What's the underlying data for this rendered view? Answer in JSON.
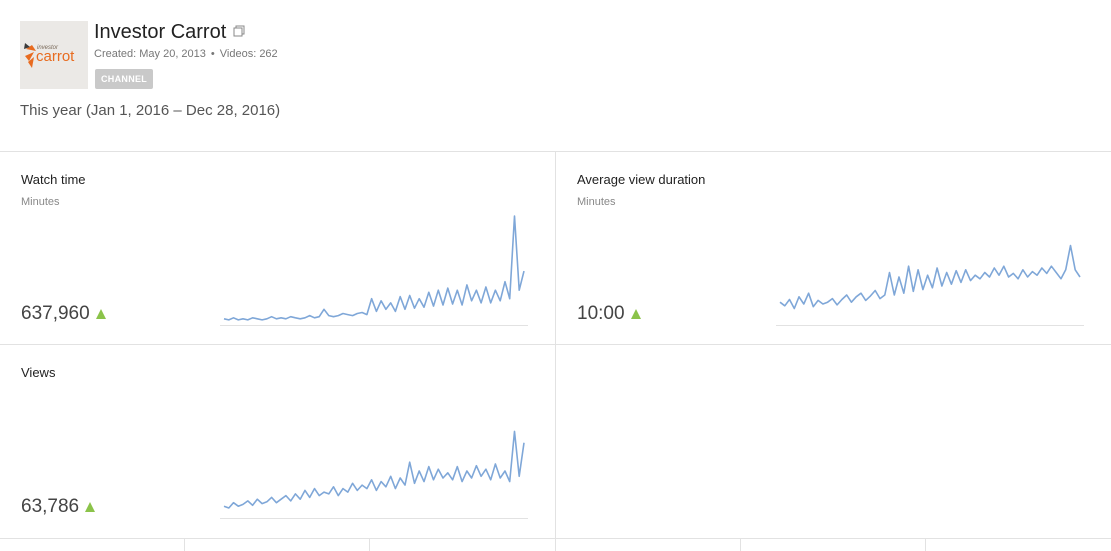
{
  "channel": {
    "title": "Investor Carrot",
    "logo_text_small": "investor",
    "logo_text_big": "carrot",
    "created": "Created: May 20, 2013",
    "videos": "Videos: 262",
    "badge": "CHANNEL"
  },
  "date_range": "This year (Jan 1, 2016 – Dec 28, 2016)",
  "colors": {
    "spark": "#7fa7d8",
    "up": "#8bc34a",
    "accent": "#e86b1f"
  },
  "cards": {
    "watch_time": {
      "label": "Watch time",
      "unit": "Minutes",
      "value": "637,960"
    },
    "avg_view_duration": {
      "label": "Average view duration",
      "unit": "Minutes",
      "value": "10:00"
    },
    "views": {
      "label": "Views",
      "unit": "",
      "value": "63,786"
    }
  },
  "chart_data": [
    {
      "type": "line",
      "title": "Watch time",
      "ylabel": "Minutes",
      "trend_shape": [
        0.03,
        0.02,
        0.04,
        0.02,
        0.03,
        0.02,
        0.04,
        0.03,
        0.02,
        0.03,
        0.05,
        0.03,
        0.04,
        0.03,
        0.05,
        0.04,
        0.03,
        0.04,
        0.06,
        0.04,
        0.05,
        0.12,
        0.06,
        0.05,
        0.06,
        0.08,
        0.07,
        0.06,
        0.08,
        0.09,
        0.07,
        0.22,
        0.1,
        0.2,
        0.12,
        0.18,
        0.1,
        0.24,
        0.12,
        0.25,
        0.13,
        0.22,
        0.14,
        0.28,
        0.15,
        0.3,
        0.16,
        0.32,
        0.17,
        0.3,
        0.16,
        0.35,
        0.2,
        0.3,
        0.18,
        0.33,
        0.18,
        0.3,
        0.2,
        0.38,
        0.22,
        1.0,
        0.3,
        0.48
      ],
      "peak_label": "",
      "y_total": 637960
    },
    {
      "type": "line",
      "title": "Average view duration",
      "ylabel": "Minutes",
      "trend_shape": [
        0.22,
        0.18,
        0.25,
        0.15,
        0.28,
        0.2,
        0.32,
        0.17,
        0.24,
        0.2,
        0.22,
        0.26,
        0.19,
        0.25,
        0.3,
        0.22,
        0.28,
        0.32,
        0.24,
        0.29,
        0.35,
        0.26,
        0.3,
        0.55,
        0.3,
        0.5,
        0.32,
        0.62,
        0.34,
        0.58,
        0.36,
        0.52,
        0.38,
        0.6,
        0.4,
        0.55,
        0.42,
        0.57,
        0.44,
        0.58,
        0.46,
        0.52,
        0.48,
        0.55,
        0.5,
        0.6,
        0.52,
        0.62,
        0.5,
        0.54,
        0.48,
        0.58,
        0.5,
        0.56,
        0.52,
        0.6,
        0.54,
        0.62,
        0.55,
        0.48,
        0.58,
        0.85,
        0.58,
        0.5
      ],
      "value_label": "10:00"
    },
    {
      "type": "line",
      "title": "Views",
      "ylabel": "",
      "trend_shape": [
        0.1,
        0.08,
        0.14,
        0.1,
        0.12,
        0.16,
        0.11,
        0.18,
        0.13,
        0.15,
        0.2,
        0.14,
        0.18,
        0.22,
        0.16,
        0.24,
        0.18,
        0.28,
        0.2,
        0.3,
        0.22,
        0.26,
        0.24,
        0.32,
        0.22,
        0.3,
        0.26,
        0.36,
        0.28,
        0.34,
        0.3,
        0.4,
        0.28,
        0.38,
        0.32,
        0.44,
        0.3,
        0.42,
        0.34,
        0.6,
        0.36,
        0.5,
        0.38,
        0.55,
        0.4,
        0.52,
        0.42,
        0.48,
        0.4,
        0.55,
        0.38,
        0.5,
        0.42,
        0.56,
        0.44,
        0.52,
        0.4,
        0.58,
        0.42,
        0.5,
        0.38,
        0.95,
        0.44,
        0.82
      ],
      "y_total": 63786
    }
  ]
}
